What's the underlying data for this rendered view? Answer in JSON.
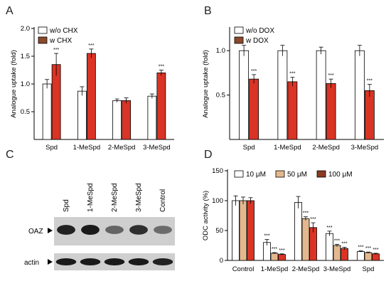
{
  "panels": {
    "a": "A",
    "b": "B",
    "c": "C",
    "d": "D"
  },
  "colors": {
    "white_bar": "#ffffff",
    "brown_bar": "#8b4a2b",
    "red_bar": "#d93425",
    "tan_bar": "#e3b88f",
    "dark_brown_bar": "#8b3a24",
    "edge": "#000000",
    "blot_bg": "#cfcfcf",
    "band": "#1a1a1a"
  },
  "chart_data": [
    {
      "id": "A",
      "type": "bar",
      "categories": [
        "Spd",
        "1-MeSpd",
        "2-MeSpd",
        "3-MeSpd"
      ],
      "ylabel": "Analogue uptake (fold)",
      "ylim": [
        0,
        2.0
      ],
      "yticks": [
        "0.5",
        "1.0",
        "1.5",
        "2.0"
      ],
      "ytick_values": [
        0.5,
        1.0,
        1.5,
        2.0
      ],
      "series": [
        {
          "name": "w/o CHX",
          "values": [
            1.0,
            0.87,
            0.7,
            0.78
          ],
          "errors": [
            0.08,
            0.08,
            0.03,
            0.04
          ],
          "sig": [
            "",
            "",
            "",
            ""
          ]
        },
        {
          "name": "w CHX",
          "values": [
            1.35,
            1.55,
            0.7,
            1.2
          ],
          "errors": [
            0.2,
            0.08,
            0.05,
            0.05
          ],
          "sig": [
            "***",
            "***",
            "",
            "***"
          ]
        }
      ],
      "legend": "top-left"
    },
    {
      "id": "B",
      "type": "bar",
      "categories": [
        "Spd",
        "1-MeSpd",
        "2-MeSpd",
        "3-MeSpd"
      ],
      "ylabel": "Analogue uptake (fold)",
      "ylim": [
        0,
        1.25
      ],
      "yticks": [
        "0.5",
        "1.0"
      ],
      "ytick_values": [
        0.5,
        1.0
      ],
      "series": [
        {
          "name": "w/o DOX",
          "values": [
            1.0,
            1.0,
            1.0,
            1.0
          ],
          "errors": [
            0.06,
            0.06,
            0.04,
            0.06
          ],
          "sig": [
            "",
            "",
            "",
            ""
          ]
        },
        {
          "name": "w DOX",
          "values": [
            0.68,
            0.65,
            0.63,
            0.55
          ],
          "errors": [
            0.05,
            0.05,
            0.05,
            0.07
          ],
          "sig": [
            "***",
            "***",
            "***",
            "***"
          ]
        }
      ],
      "legend": "top-left"
    },
    {
      "id": "D",
      "type": "bar",
      "categories": [
        "Control",
        "1-MeSpd",
        "2-MeSpd",
        "3-MeSpd",
        "Spd"
      ],
      "ylabel": "ODC activity (%)",
      "ylim": [
        0,
        150
      ],
      "yticks": [
        "0",
        "50",
        "100",
        "150"
      ],
      "ytick_values": [
        0,
        50,
        100,
        150
      ],
      "series": [
        {
          "name": "10 μM",
          "values": [
            100,
            30,
            97,
            45,
            15
          ],
          "errors": [
            8,
            5,
            10,
            4,
            1
          ],
          "sig": [
            "",
            "***",
            "",
            "***",
            "***"
          ]
        },
        {
          "name": "50 μM",
          "values": [
            100,
            12,
            70,
            25,
            13
          ],
          "errors": [
            6,
            1,
            3,
            2,
            1
          ],
          "sig": [
            "",
            "***",
            "***",
            "***",
            "***"
          ]
        },
        {
          "name": "100 μM",
          "values": [
            100,
            10,
            55,
            20,
            11
          ],
          "errors": [
            5,
            1,
            8,
            2,
            1
          ],
          "sig": [
            "",
            "***",
            "***",
            "***",
            "***"
          ]
        }
      ],
      "legend": "top"
    }
  ],
  "blot": {
    "lanes": [
      "Spd",
      "1-MeSpd",
      "2-MeSpd",
      "3-MeSpd",
      "Control"
    ],
    "rows": [
      "OAZ",
      "actin"
    ],
    "oaz_intensity": [
      0.95,
      1.0,
      0.45,
      0.85,
      0.4
    ],
    "actin_intensity": [
      1.0,
      1.0,
      1.0,
      1.0,
      0.95
    ]
  }
}
